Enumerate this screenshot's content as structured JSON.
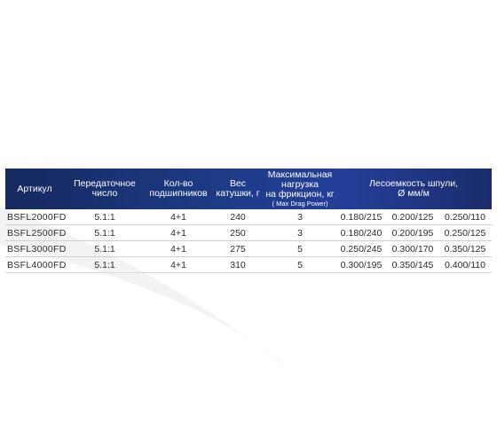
{
  "colors": {
    "header_dark": "#16295f",
    "header_mid": "#243f9a",
    "header_text": "#ffffff",
    "body_text": "#2a2a2a",
    "row_divider": "#d0d0d0"
  },
  "table": {
    "headers": {
      "article": "Артикул",
      "gear_ratio_1": "Передаточное",
      "gear_ratio_2": "число",
      "bearings_1": "Кол-во",
      "bearings_2": "подшипников",
      "weight_1": "Вес",
      "weight_2": "катушки, г",
      "drag_1": "Максимальная",
      "drag_2": "нагрузка",
      "drag_3": "на фрикцион, кг",
      "drag_4": "( Max Drag Power)",
      "capacity_1": "Лесоемкость шпули,",
      "capacity_2": "Ø мм/м"
    },
    "rows": [
      {
        "article": "BSFL2000FD",
        "gear_ratio": "5.1:1",
        "bearings": "4+1",
        "weight": "240",
        "drag": "3",
        "cap1": "0.180/215",
        "cap2": "0.200/125",
        "cap3": "0.250/110"
      },
      {
        "article": "BSFL2500FD",
        "gear_ratio": "5.1:1",
        "bearings": "4+1",
        "weight": "250",
        "drag": "3",
        "cap1": "0.180/240",
        "cap2": "0.200/195",
        "cap3": "0.250/125"
      },
      {
        "article": "BSFL3000FD",
        "gear_ratio": "5.1:1",
        "bearings": "4+1",
        "weight": "275",
        "drag": "5",
        "cap1": "0.250/245",
        "cap2": "0.300/170",
        "cap3": "0.350/125"
      },
      {
        "article": "BSFL4000FD",
        "gear_ratio": "5.1:1",
        "bearings": "4+1",
        "weight": "310",
        "drag": "5",
        "cap1": "0.300/195",
        "cap2": "0.350/145",
        "cap3": "0.400/110"
      }
    ]
  }
}
